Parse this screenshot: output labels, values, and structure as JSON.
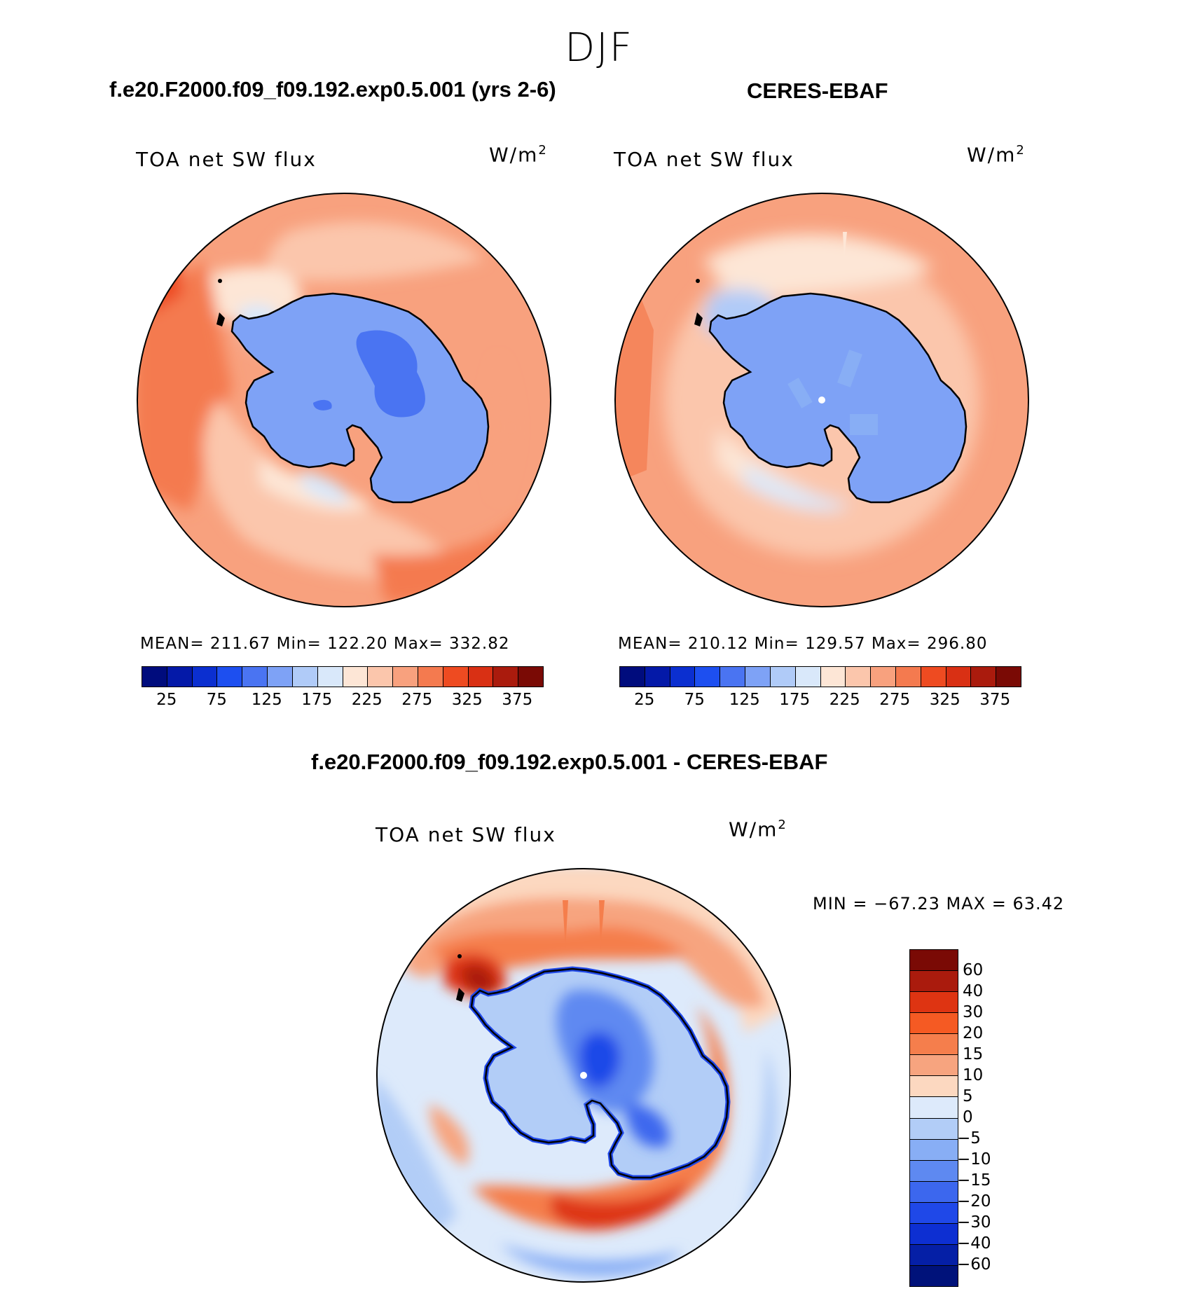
{
  "figure": {
    "season": "DJF",
    "variable": "TOA net SW flux",
    "units_base": "W/m",
    "units_exp": "2"
  },
  "panels": [
    {
      "title": "f.e20.F2000.f09_f09.192.exp0.5.001 (yrs 2-6)",
      "stats_text": "MEAN=  211.67    Min=  122.20    Max=  332.82"
    },
    {
      "title": "CERES-EBAF",
      "stats_text": "MEAN=  210.12    Min=  129.57    Max=  296.80"
    }
  ],
  "diff_panel": {
    "title": "f.e20.F2000.f09_f09.192.exp0.5.001 - CERES-EBAF",
    "minmax_text": "MIN  =  −67.23  MAX  =    63.42"
  },
  "abs_colorbar": {
    "colors": [
      "#000c7d",
      "#0419a8",
      "#0b2fd0",
      "#1d4ff0",
      "#4a74f2",
      "#7ea2f6",
      "#b0cbf8",
      "#d9e8fa",
      "#fde6d6",
      "#fbc6ac",
      "#f8a17e",
      "#f47a4f",
      "#ee4b21",
      "#d93014",
      "#aa1b0d",
      "#7a0a05"
    ],
    "tick_labels": [
      "25",
      "75",
      "125",
      "175",
      "225",
      "275",
      "325",
      "375"
    ]
  },
  "diff_colorbar": {
    "colors": [
      "#7a0a05",
      "#aa1b0d",
      "#de3412",
      "#f55a23",
      "#f57e4c",
      "#f7a47f",
      "#fcd8c0",
      "#ddeafb",
      "#b2cdf7",
      "#88aef5",
      "#5e89f1",
      "#3c67ee",
      "#1f48e8",
      "#0d2fd2",
      "#051fa6",
      "#00127a"
    ],
    "labels": [
      "60",
      "40",
      "30",
      "20",
      "15",
      "10",
      "5",
      "0",
      "−5",
      "−10",
      "−15",
      "−20",
      "−30",
      "−40",
      "−60"
    ]
  }
}
